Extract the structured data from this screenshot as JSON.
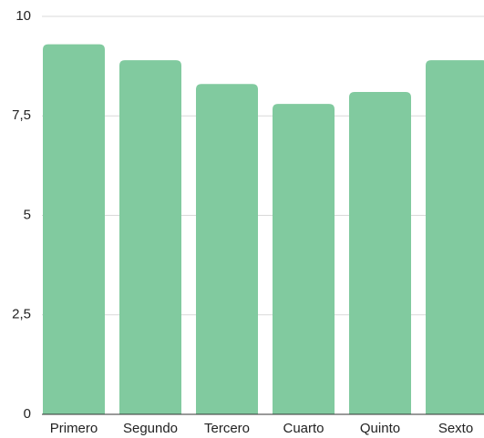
{
  "chart_data": {
    "type": "bar",
    "categories": [
      "Primero",
      "Segundo",
      "Tercero",
      "Cuarto",
      "Quinto",
      "Sexto"
    ],
    "values": [
      9.3,
      8.9,
      8.3,
      7.8,
      8.1,
      8.9
    ],
    "color": "#81ca9f",
    "ylim": [
      0,
      10
    ],
    "yticks": [
      0,
      {
        "value": 2.5,
        "label": "2,5"
      },
      5,
      {
        "value": 7.5,
        "label": "7,5"
      },
      10
    ],
    "grid": true
  }
}
